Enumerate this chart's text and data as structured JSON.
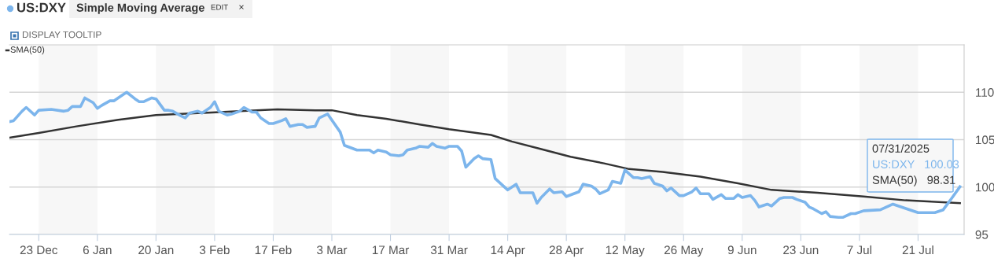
{
  "chart_data": {
    "type": "line",
    "annotations": [
      "Simple Moving Average",
      "EDIT",
      "×",
      "DISPLAY TOOLTIP",
      "07/31/2025",
      "US:DXY   100.03",
      "SMA(50)   98.31"
    ],
    "xlim": [
      "2024-12-16",
      "2025-08-01"
    ],
    "xticks": [
      {
        "value": "2024-12-23",
        "label": "23 Dec"
      },
      {
        "value": "2025-01-06",
        "label": "6 Jan"
      },
      {
        "value": "2025-01-20",
        "label": "20 Jan"
      },
      {
        "value": "2025-02-03",
        "label": "3 Feb"
      },
      {
        "value": "2025-02-17",
        "label": "17 Feb"
      },
      {
        "value": "2025-03-03",
        "label": "3 Mar"
      },
      {
        "value": "2025-03-17",
        "label": "17 Mar"
      },
      {
        "value": "2025-03-31",
        "label": "31 Mar"
      },
      {
        "value": "2025-04-14",
        "label": "14 Apr"
      },
      {
        "value": "2025-04-28",
        "label": "28 Apr"
      },
      {
        "value": "2025-05-12",
        "label": "12 May"
      },
      {
        "value": "2025-05-26",
        "label": "26 May"
      },
      {
        "value": "2025-06-09",
        "label": "9 Jun"
      },
      {
        "value": "2025-06-23",
        "label": "23 Jun"
      },
      {
        "value": "2025-07-07",
        "label": "7 Jul"
      },
      {
        "value": "2025-07-21",
        "label": "21 Jul"
      }
    ],
    "ylim": [
      95,
      115
    ],
    "yticks": [
      95,
      100,
      105,
      110
    ],
    "grid": "y",
    "marker": "none",
    "legend": "top left",
    "line_style": "solid",
    "bands": [
      {
        "axis": "x",
        "from": "2024-12-23",
        "to": "2025-01-06",
        "color": "#f7f7f7"
      },
      {
        "axis": "x",
        "from": "2025-01-20",
        "to": "2025-02-03",
        "color": "#f7f7f7"
      },
      {
        "axis": "x",
        "from": "2025-02-17",
        "to": "2025-03-03",
        "color": "#f7f7f7"
      },
      {
        "axis": "x",
        "from": "2025-03-17",
        "to": "2025-03-31",
        "color": "#f7f7f7"
      },
      {
        "axis": "x",
        "from": "2025-04-14",
        "to": "2025-04-28",
        "color": "#f7f7f7"
      },
      {
        "axis": "x",
        "from": "2025-05-12",
        "to": "2025-05-26",
        "color": "#f7f7f7"
      },
      {
        "axis": "x",
        "from": "2025-06-09",
        "to": "2025-06-23",
        "color": "#f7f7f7"
      },
      {
        "axis": "x",
        "from": "2025-07-07",
        "to": "2025-07-21",
        "color": "#f7f7f7"
      }
    ],
    "series": [
      {
        "name": "US:DXY",
        "color": "#7cb5ec",
        "x": [
          "2024-12-16",
          "2024-12-17",
          "2024-12-19",
          "2024-12-20",
          "2024-12-22",
          "2024-12-23",
          "2024-12-26",
          "2024-12-29",
          "2024-12-30",
          "2024-12-31",
          "2025-01-02",
          "2025-01-03",
          "2025-01-05",
          "2025-01-06",
          "2025-01-07",
          "2025-01-09",
          "2025-01-10",
          "2025-01-12",
          "2025-01-13",
          "2025-01-15",
          "2025-01-16",
          "2025-01-17",
          "2025-01-19",
          "2025-01-20",
          "2025-01-22",
          "2025-01-23",
          "2025-01-24",
          "2025-01-26",
          "2025-01-27",
          "2025-01-28",
          "2025-01-30",
          "2025-01-31",
          "2025-02-02",
          "2025-02-03",
          "2025-02-04",
          "2025-02-06",
          "2025-02-07",
          "2025-02-09",
          "2025-02-10",
          "2025-02-12",
          "2025-02-13",
          "2025-02-14",
          "2025-02-16",
          "2025-02-17",
          "2025-02-19",
          "2025-02-20",
          "2025-02-21",
          "2025-02-23",
          "2025-02-24",
          "2025-02-25",
          "2025-02-27",
          "2025-02-28",
          "2025-03-02",
          "2025-03-05",
          "2025-03-06",
          "2025-03-09",
          "2025-03-12",
          "2025-03-13",
          "2025-03-14",
          "2025-03-16",
          "2025-03-17",
          "2025-03-19",
          "2025-03-20",
          "2025-03-21",
          "2025-03-23",
          "2025-03-24",
          "2025-03-26",
          "2025-03-27",
          "2025-03-28",
          "2025-03-30",
          "2025-03-31",
          "2025-04-02",
          "2025-04-03",
          "2025-04-04",
          "2025-04-06",
          "2025-04-07",
          "2025-04-08",
          "2025-04-10",
          "2025-04-11",
          "2025-04-13",
          "2025-04-14",
          "2025-04-16",
          "2025-04-17",
          "2025-04-20",
          "2025-04-21",
          "2025-04-22",
          "2025-04-24",
          "2025-04-25",
          "2025-04-27",
          "2025-04-28",
          "2025-05-01",
          "2025-05-02",
          "2025-05-04",
          "2025-05-05",
          "2025-05-06",
          "2025-05-08",
          "2025-05-09",
          "2025-05-11",
          "2025-05-12",
          "2025-05-14",
          "2025-05-15",
          "2025-05-16",
          "2025-05-18",
          "2025-05-19",
          "2025-05-21",
          "2025-05-22",
          "2025-05-23",
          "2025-05-25",
          "2025-05-26",
          "2025-05-28",
          "2025-05-29",
          "2025-05-30",
          "2025-06-01",
          "2025-06-02",
          "2025-06-04",
          "2025-06-05",
          "2025-06-07",
          "2025-06-08",
          "2025-06-09",
          "2025-06-11",
          "2025-06-12",
          "2025-06-13",
          "2025-06-15",
          "2025-06-16",
          "2025-06-18",
          "2025-06-19",
          "2025-06-21",
          "2025-06-22",
          "2025-06-24",
          "2025-06-25",
          "2025-06-26",
          "2025-06-28",
          "2025-06-29",
          "2025-06-30",
          "2025-07-02",
          "2025-07-03",
          "2025-07-05",
          "2025-07-06",
          "2025-07-08",
          "2025-07-12",
          "2025-07-15",
          "2025-07-21",
          "2025-07-25",
          "2025-07-27",
          "2025-07-29",
          "2025-07-31"
        ],
        "values": [
          106.9,
          107.0,
          108.0,
          108.4,
          107.6,
          108.1,
          108.2,
          108.0,
          108.1,
          108.5,
          108.5,
          109.4,
          108.9,
          108.3,
          108.6,
          109.1,
          109.1,
          109.7,
          110.0,
          109.3,
          109.0,
          109.0,
          109.4,
          109.3,
          108.1,
          108.1,
          108.0,
          107.5,
          107.3,
          107.8,
          108.0,
          107.8,
          108.4,
          109.0,
          108.0,
          107.6,
          107.7,
          108.0,
          108.4,
          107.9,
          107.9,
          107.3,
          106.7,
          106.7,
          107.0,
          107.2,
          106.4,
          106.6,
          106.6,
          106.3,
          106.4,
          107.3,
          107.7,
          105.8,
          104.4,
          103.9,
          103.9,
          103.6,
          103.9,
          103.7,
          103.4,
          103.3,
          103.4,
          103.9,
          104.1,
          104.3,
          104.2,
          104.6,
          104.3,
          104.1,
          104.3,
          104.3,
          103.8,
          102.1,
          103.0,
          103.3,
          103.0,
          102.9,
          100.9,
          100.1,
          99.7,
          100.3,
          99.4,
          99.4,
          98.3,
          98.9,
          99.8,
          99.4,
          99.5,
          99.0,
          99.5,
          100.3,
          100.1,
          99.8,
          99.3,
          99.7,
          100.6,
          100.4,
          101.8,
          101.0,
          101.0,
          100.9,
          101.1,
          100.4,
          100.1,
          99.6,
          99.9,
          99.1,
          99.1,
          99.5,
          99.9,
          99.3,
          99.3,
          98.7,
          99.2,
          98.8,
          98.8,
          99.2,
          98.9,
          99.1,
          98.6,
          97.9,
          98.2,
          98.0,
          98.8,
          98.9,
          98.9,
          98.7,
          98.4,
          97.9,
          97.7,
          97.2,
          97.4,
          96.9,
          96.8,
          96.8,
          97.2,
          97.2,
          97.5,
          97.6,
          98.2,
          97.3,
          97.3,
          97.6,
          98.8,
          100.03
        ]
      },
      {
        "name": "SMA(50)",
        "color": "#333333",
        "x": [
          "2024-12-16",
          "2024-12-23",
          "2025-01-01",
          "2025-01-11",
          "2025-01-20",
          "2025-01-30",
          "2025-02-09",
          "2025-02-18",
          "2025-02-27",
          "2025-03-03",
          "2025-03-09",
          "2025-03-16",
          "2025-03-24",
          "2025-03-31",
          "2025-04-10",
          "2025-04-15",
          "2025-04-22",
          "2025-04-29",
          "2025-05-07",
          "2025-05-13",
          "2025-05-21",
          "2025-05-30",
          "2025-06-08",
          "2025-06-16",
          "2025-06-27",
          "2025-07-08",
          "2025-07-18",
          "2025-07-31"
        ],
        "values": [
          105.2,
          105.7,
          106.4,
          107.1,
          107.6,
          107.8,
          108.0,
          108.2,
          108.1,
          108.1,
          107.6,
          107.2,
          106.6,
          106.1,
          105.5,
          104.8,
          104.0,
          103.2,
          102.5,
          101.9,
          101.6,
          101.1,
          100.4,
          99.7,
          99.4,
          99.0,
          98.6,
          98.31
        ]
      }
    ]
  }
}
